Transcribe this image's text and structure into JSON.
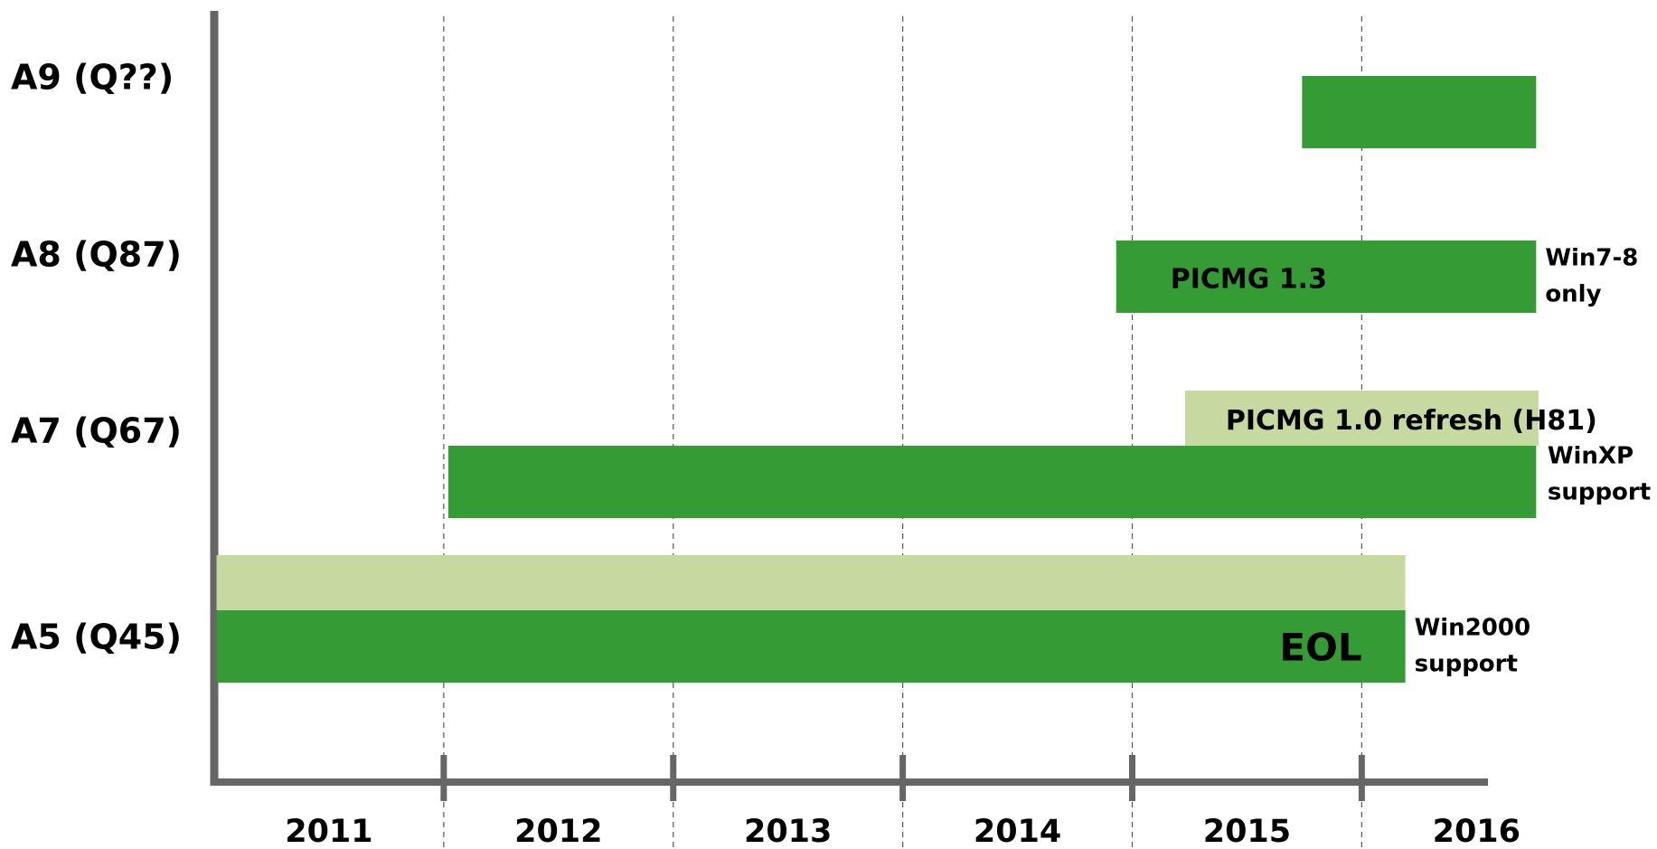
{
  "chart_data": {
    "type": "gantt",
    "categories": [
      "2011",
      "2012",
      "2013",
      "2014",
      "2015",
      "2016"
    ],
    "xlim": [
      2011,
      2016.55
    ],
    "xticks": [
      2012,
      2013,
      2014,
      2015,
      2016
    ],
    "grid": true,
    "rows": [
      {
        "label": "A9 (Q??)",
        "bars": [
          {
            "start": 2015.74,
            "end": 2016.76,
            "color": "#359b35"
          }
        ]
      },
      {
        "label": "A8 (Q87)",
        "note": [
          "Win7-8",
          "only"
        ],
        "bars": [
          {
            "start": 2014.93,
            "end": 2016.76,
            "color": "#359b35",
            "label": "PICMG 1.3"
          }
        ]
      },
      {
        "label": "A7 (Q67)",
        "note": [
          "WinXP",
          "support"
        ],
        "bars": [
          {
            "start": 2015.23,
            "end": 2016.77,
            "color": "#c5d9a0",
            "label": "PICMG 1.0 refresh (H81)"
          },
          {
            "start": 2012.02,
            "end": 2016.76,
            "color": "#359b35"
          }
        ]
      },
      {
        "label": "A5 (Q45)",
        "note": [
          "Win2000",
          "support"
        ],
        "bars": [
          {
            "start": 2011.01,
            "end": 2016.19,
            "color": "#c5d9a0"
          },
          {
            "start": 2011.01,
            "end": 2016.19,
            "color": "#359b35",
            "label": "EOL"
          }
        ]
      }
    ]
  }
}
